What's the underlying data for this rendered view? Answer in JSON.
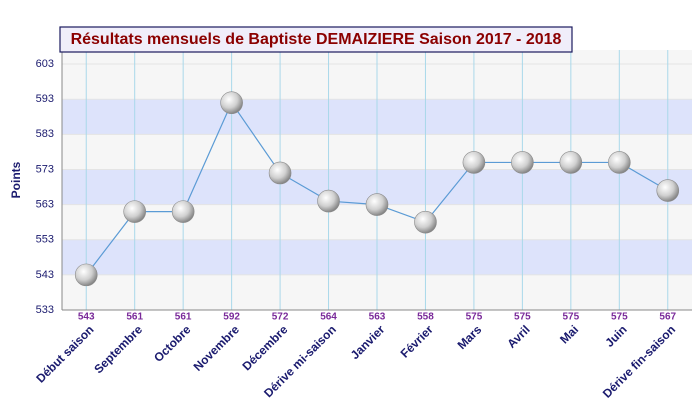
{
  "chart_data": {
    "type": "line",
    "title": "Résultats mensuels de Baptiste DEMAIZIERE Saison 2017 - 2018",
    "y_label": "Points",
    "categories": [
      "Début saison",
      "Septembre",
      "Octobre",
      "Novembre",
      "Décembre",
      "Dérive mi-saison",
      "Janvier",
      "Février",
      "Mars",
      "Avril",
      "Mai",
      "Juin",
      "Dérive fin-saison"
    ],
    "values": [
      543,
      561,
      561,
      592,
      572,
      564,
      563,
      558,
      575,
      575,
      575,
      575,
      567
    ],
    "color": "#5b9bd5",
    "ylim": [
      533,
      607
    ],
    "yticks": [
      533,
      543,
      553,
      563,
      573,
      583,
      593,
      603
    ],
    "grid": true
  }
}
